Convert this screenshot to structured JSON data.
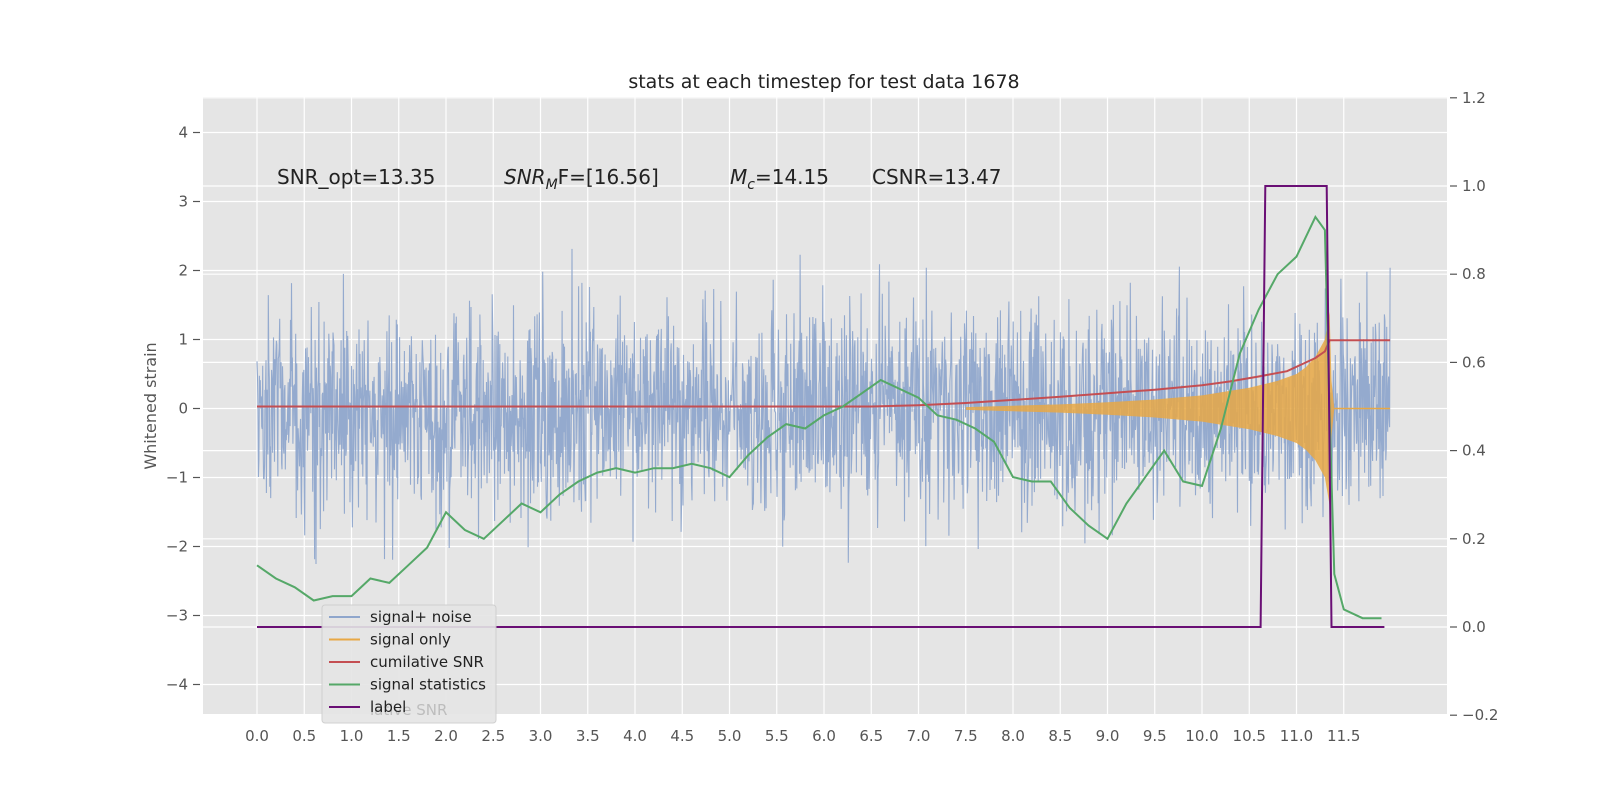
{
  "chart_data": {
    "type": "line",
    "title": "stats at each timestep for test data 1678",
    "ylabel": "Whitened strain",
    "xlabel": "",
    "y2label": "",
    "xlim": [
      0.0,
      11.99
    ],
    "ylim": [
      -4.4,
      4.5
    ],
    "y2lim": [
      -0.2,
      1.2
    ],
    "grid": true,
    "legend_position": "bottom-left",
    "x_ticks": [
      "0.0",
      "0.5",
      "1.0",
      "1.5",
      "2.0",
      "2.5",
      "3.0",
      "3.5",
      "4.0",
      "4.5",
      "5.0",
      "5.5",
      "6.0",
      "6.5",
      "7.0",
      "7.5",
      "8.0",
      "8.5",
      "9.0",
      "9.5",
      "10.0",
      "10.5",
      "11.0",
      "11.5"
    ],
    "y_ticks": [
      "4",
      "3",
      "2",
      "1",
      "0",
      "−1",
      "−2",
      "−3",
      "−4"
    ],
    "y2_ticks": [
      "1.2",
      "1.0",
      "0.8",
      "0.6",
      "0.4",
      "0.2",
      "0.0",
      "−0.2"
    ],
    "annotations": [
      {
        "id": "snr_opt",
        "text": "SNR_opt=13.35"
      },
      {
        "id": "snr_mf",
        "text": "SNR",
        "sub": "M",
        "suffix": "F=[16.56]"
      },
      {
        "id": "mc",
        "text": "M",
        "sub": "c",
        "suffix": "=14.15"
      },
      {
        "id": "csnr",
        "text": "CSNR=13.47"
      }
    ],
    "legend_ghost_text": "lative SNR",
    "series": [
      {
        "name": "signal+ noise",
        "color": "#8fa6cc",
        "axis": "left",
        "description": "Whitened noisy strain, dense band mostly between -2 and 2 with spikes to about ±4"
      },
      {
        "name": "signal only",
        "color": "#e8a845",
        "axis": "left",
        "envelope": [
          [
            7.5,
            0.02
          ],
          [
            8.0,
            0.04
          ],
          [
            8.5,
            0.06
          ],
          [
            9.0,
            0.09
          ],
          [
            9.5,
            0.13
          ],
          [
            10.0,
            0.19
          ],
          [
            10.5,
            0.3
          ],
          [
            10.8,
            0.4
          ],
          [
            11.0,
            0.5
          ],
          [
            11.1,
            0.6
          ],
          [
            11.2,
            0.75
          ],
          [
            11.3,
            1.0
          ],
          [
            11.35,
            1.4
          ],
          [
            11.37,
            0.4
          ],
          [
            11.4,
            0.0
          ]
        ]
      },
      {
        "name": "cumilative SNR",
        "color": "#c44e52",
        "axis": "right",
        "x": [
          0.0,
          6.5,
          7.0,
          7.5,
          8.0,
          8.5,
          9.0,
          9.5,
          10.0,
          10.3,
          10.6,
          10.9,
          11.1,
          11.2,
          11.3,
          11.35,
          11.4,
          11.99
        ],
        "y": [
          0.5,
          0.5,
          0.503,
          0.508,
          0.515,
          0.522,
          0.53,
          0.538,
          0.548,
          0.557,
          0.568,
          0.58,
          0.6,
          0.61,
          0.625,
          0.65,
          0.65,
          0.65
        ]
      },
      {
        "name": "signal statistics",
        "color": "#55a868",
        "axis": "right",
        "x": [
          0.0,
          0.2,
          0.4,
          0.6,
          0.8,
          1.0,
          1.2,
          1.4,
          1.6,
          1.8,
          2.0,
          2.2,
          2.4,
          2.6,
          2.8,
          3.0,
          3.2,
          3.4,
          3.6,
          3.8,
          4.0,
          4.2,
          4.4,
          4.6,
          4.8,
          5.0,
          5.2,
          5.4,
          5.6,
          5.8,
          6.0,
          6.2,
          6.4,
          6.6,
          6.8,
          7.0,
          7.2,
          7.4,
          7.6,
          7.8,
          8.0,
          8.2,
          8.4,
          8.6,
          8.8,
          9.0,
          9.2,
          9.4,
          9.6,
          9.8,
          10.0,
          10.2,
          10.4,
          10.6,
          10.8,
          11.0,
          11.2,
          11.3,
          11.35,
          11.4,
          11.5,
          11.7,
          11.9
        ],
        "y": [
          0.14,
          0.11,
          0.09,
          0.06,
          0.07,
          0.07,
          0.11,
          0.1,
          0.14,
          0.18,
          0.26,
          0.22,
          0.2,
          0.24,
          0.28,
          0.26,
          0.3,
          0.33,
          0.35,
          0.36,
          0.35,
          0.36,
          0.36,
          0.37,
          0.36,
          0.34,
          0.39,
          0.43,
          0.46,
          0.45,
          0.48,
          0.5,
          0.53,
          0.56,
          0.54,
          0.52,
          0.48,
          0.47,
          0.45,
          0.42,
          0.34,
          0.33,
          0.33,
          0.27,
          0.23,
          0.2,
          0.28,
          0.34,
          0.4,
          0.33,
          0.32,
          0.45,
          0.62,
          0.72,
          0.8,
          0.84,
          0.93,
          0.9,
          0.48,
          0.12,
          0.04,
          0.02,
          0.02
        ]
      },
      {
        "name": "label",
        "color": "#6a0f75",
        "axis": "right",
        "x": [
          0.0,
          10.62,
          10.67,
          11.32,
          11.37,
          11.93
        ],
        "y": [
          0.0,
          0.0,
          1.0,
          1.0,
          0.0,
          0.0
        ]
      }
    ]
  }
}
